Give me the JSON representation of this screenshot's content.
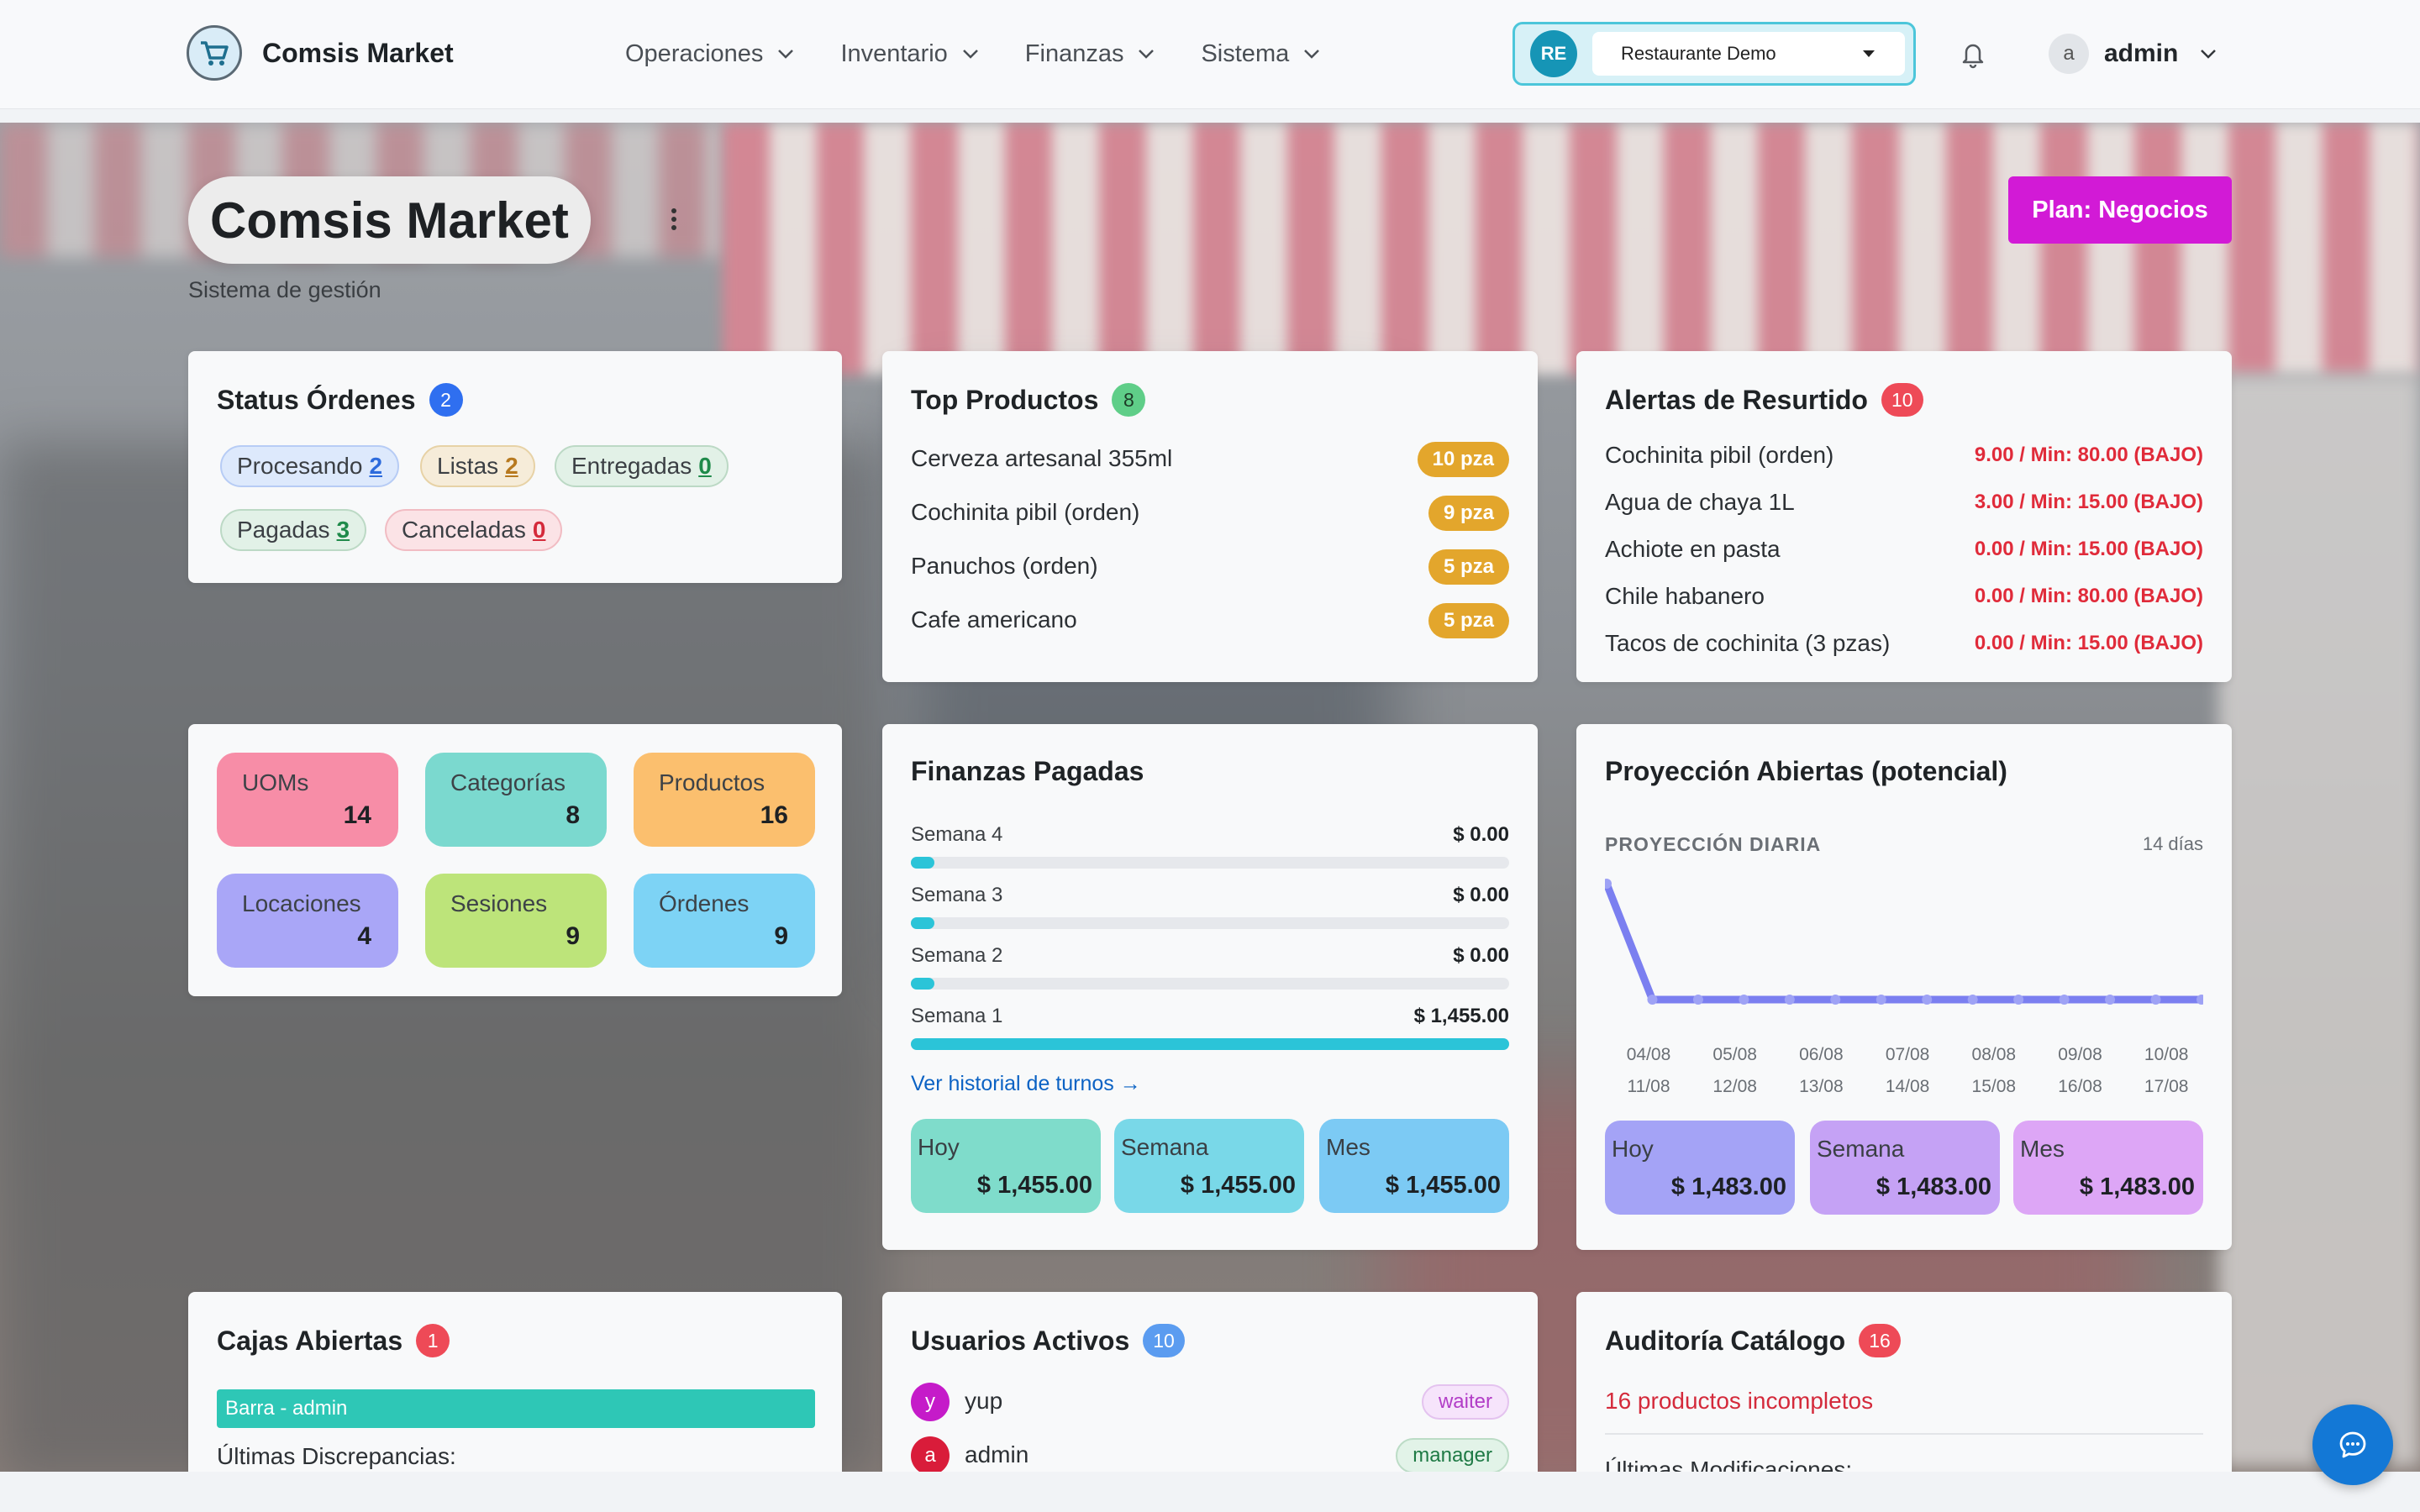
{
  "app": {
    "brand": "Comsis Market"
  },
  "nav": {
    "items": [
      "Operaciones",
      "Inventario",
      "Finanzas",
      "Sistema"
    ]
  },
  "tenant": {
    "badge": "RE",
    "selected": "Restaurante Demo"
  },
  "user": {
    "avatar": "a",
    "name": "admin"
  },
  "hero": {
    "title": "Comsis Market",
    "subtitle": "Sistema de gestión",
    "plan_button": "Plan: Negocios"
  },
  "status_ordenes": {
    "title": "Status Órdenes",
    "count": "2",
    "pills": [
      {
        "label": "Procesando",
        "value": "2"
      },
      {
        "label": "Listas",
        "value": "2"
      },
      {
        "label": "Entregadas",
        "value": "0"
      },
      {
        "label": "Pagadas",
        "value": "3"
      },
      {
        "label": "Canceladas",
        "value": "0"
      }
    ]
  },
  "top_productos": {
    "title": "Top Productos",
    "count": "8",
    "items": [
      {
        "name": "Cerveza artesanal 355ml",
        "qty": "10 pza"
      },
      {
        "name": "Cochinita pibil (orden)",
        "qty": "9 pza"
      },
      {
        "name": "Panuchos (orden)",
        "qty": "5 pza"
      },
      {
        "name": "Cafe americano",
        "qty": "5 pza"
      }
    ]
  },
  "alertas": {
    "title": "Alertas de Resurtido",
    "count": "10",
    "items": [
      {
        "name": "Cochinita pibil (orden)",
        "value": "9.00 / Min: 80.00 (BAJO)"
      },
      {
        "name": "Agua de chaya 1L",
        "value": "3.00 / Min: 15.00 (BAJO)"
      },
      {
        "name": "Achiote en pasta",
        "value": "0.00 / Min: 15.00 (BAJO)"
      },
      {
        "name": "Chile habanero",
        "value": "0.00 / Min: 80.00 (BAJO)"
      },
      {
        "name": "Tacos de cochinita (3 pzas)",
        "value": "0.00 / Min: 15.00 (BAJO)"
      }
    ]
  },
  "catalogo": {
    "tiles": [
      {
        "label": "UOMs",
        "value": "14",
        "color": "#f78da7"
      },
      {
        "label": "Categorías",
        "value": "8",
        "color": "#7bd9cf"
      },
      {
        "label": "Productos",
        "value": "16",
        "color": "#fbbf6e"
      },
      {
        "label": "Locaciones",
        "value": "4",
        "color": "#a9a6f7"
      },
      {
        "label": "Sesiones",
        "value": "9",
        "color": "#bde47a"
      },
      {
        "label": "Órdenes",
        "value": "9",
        "color": "#7dd3f5"
      }
    ]
  },
  "finanzas": {
    "title": "Finanzas Pagadas",
    "weeks": [
      {
        "label": "Semana 4",
        "value": "$ 0.00",
        "fill": 0.0
      },
      {
        "label": "Semana 3",
        "value": "$ 0.00",
        "fill": 0.0
      },
      {
        "label": "Semana 2",
        "value": "$ 0.00",
        "fill": 0.0
      },
      {
        "label": "Semana 1",
        "value": "$ 1,455.00",
        "fill": 1.0
      }
    ],
    "link": "Ver historial de turnos →",
    "summary": [
      {
        "label": "Hoy",
        "value": "$ 1,455.00"
      },
      {
        "label": "Semana",
        "value": "$ 1,455.00"
      },
      {
        "label": "Mes",
        "value": "$ 1,455.00"
      }
    ]
  },
  "proyeccion": {
    "title": "Proyección Abiertas (potencial)",
    "label": "PROYECCIÓN DIARIA",
    "days": "14 días",
    "x_top": [
      "04/08",
      "05/08",
      "06/08",
      "07/08",
      "08/08",
      "09/08",
      "10/08"
    ],
    "x_bottom": [
      "11/08",
      "12/08",
      "13/08",
      "14/08",
      "15/08",
      "16/08",
      "17/08"
    ],
    "summary": [
      {
        "label": "Hoy",
        "value": "$ 1,483.00"
      },
      {
        "label": "Semana",
        "value": "$ 1,483.00"
      },
      {
        "label": "Mes",
        "value": "$ 1,483.00"
      }
    ]
  },
  "chart_data": {
    "type": "line",
    "x": [
      "04/08",
      "05/08",
      "06/08",
      "07/08",
      "08/08",
      "09/08",
      "10/08",
      "11/08",
      "12/08",
      "13/08",
      "14/08",
      "15/08",
      "16/08",
      "17/08"
    ],
    "series": [
      {
        "values": [
          1483,
          0,
          0,
          0,
          0,
          0,
          0,
          0,
          0,
          0,
          0,
          0,
          0,
          0
        ]
      }
    ],
    "color": "#7b7ff0",
    "title": "",
    "xlabel": "",
    "ylabel": ""
  },
  "cajas": {
    "title": "Cajas Abiertas",
    "count": "1",
    "caja": "Barra - admin",
    "discrepancias": "Últimas Discrepancias:"
  },
  "usuarios": {
    "title": "Usuarios Activos",
    "count": "10",
    "items": [
      {
        "avatar": "y",
        "name": "yup",
        "role": "waiter",
        "color": "#c51bc9"
      },
      {
        "avatar": "a",
        "name": "admin",
        "role": "manager",
        "color": "#d91c3a"
      }
    ]
  },
  "auditoria": {
    "title": "Auditoría Catálogo",
    "count": "16",
    "incompletos": "16 productos incompletos",
    "modificaciones": "Últimas Modificaciones:"
  }
}
